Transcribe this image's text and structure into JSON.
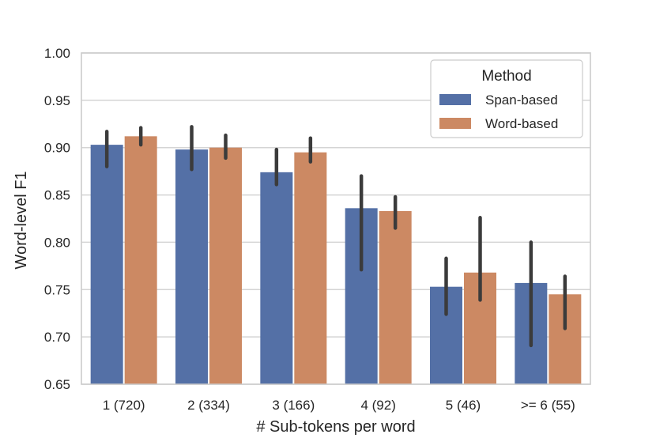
{
  "chart_data": {
    "type": "bar",
    "title": "",
    "xlabel": "# Sub-tokens per word",
    "ylabel": "Word-level F1",
    "ylim": [
      0.65,
      1.0
    ],
    "yticks": [
      "0.65",
      "0.70",
      "0.75",
      "0.80",
      "0.85",
      "0.90",
      "0.95",
      "1.00"
    ],
    "grid": true,
    "categories": [
      "1 (720)",
      "2 (334)",
      "3 (166)",
      "4 (92)",
      "5 (46)",
      ">= 6 (55)"
    ],
    "series": [
      {
        "name": "Span-based",
        "color": "#5470a6",
        "values": [
          0.903,
          0.898,
          0.874,
          0.836,
          0.753,
          0.757
        ],
        "ci_low": [
          0.88,
          0.877,
          0.861,
          0.771,
          0.724,
          0.691
        ],
        "ci_high": [
          0.917,
          0.922,
          0.898,
          0.87,
          0.783,
          0.8
        ]
      },
      {
        "name": "Word-based",
        "color": "#cc8963",
        "values": [
          0.912,
          0.9,
          0.895,
          0.833,
          0.768,
          0.745
        ],
        "ci_low": [
          0.903,
          0.889,
          0.885,
          0.815,
          0.739,
          0.709
        ],
        "ci_high": [
          0.921,
          0.913,
          0.91,
          0.848,
          0.826,
          0.764
        ]
      }
    ],
    "legend": {
      "title": "Method",
      "position": "top-right"
    },
    "errorbar_color": "#3b3b3b",
    "grid_color": "#d4d4d4",
    "frame_color": "#cccccc"
  }
}
